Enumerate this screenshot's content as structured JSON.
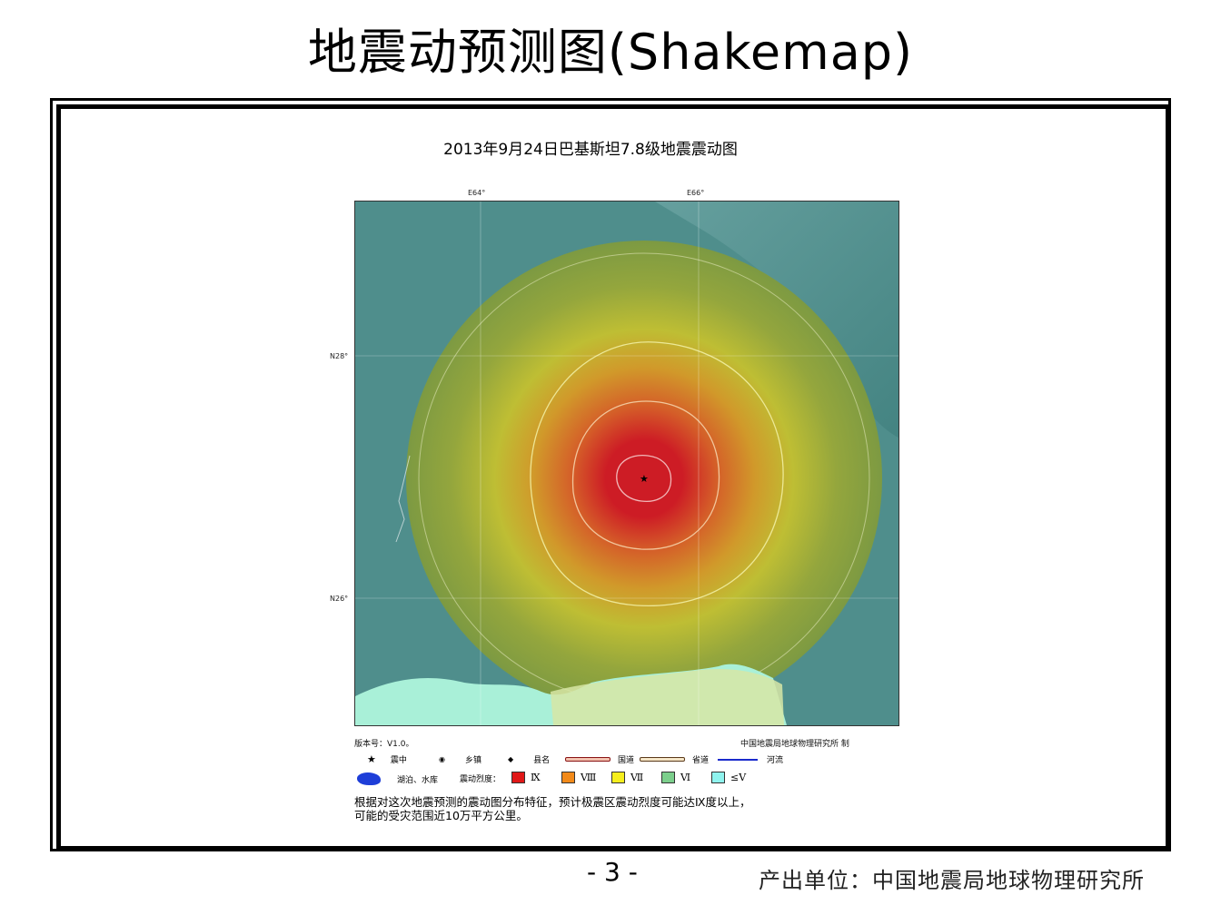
{
  "page_title": "地震动预测图(Shakemap)",
  "map_title": "2013年9月24日巴基斯坦7.8级地震震动图",
  "axes": {
    "lon_labels": [
      "E64°",
      "E66°"
    ],
    "lat_labels": [
      "N28°",
      "N26°"
    ]
  },
  "version": "版本号：V1.0。",
  "maker": "中国地震局地球物理研究所  制",
  "legend": {
    "epicenter": "震中",
    "town": "乡镇",
    "county": "县名",
    "national_road": "国道",
    "provincial_road": "省道",
    "river": "河流",
    "lake": "湖泊、水库",
    "intensity_label": "震动烈度：",
    "intensities": [
      {
        "label": "Ⅸ",
        "color": "#e01818"
      },
      {
        "label": "Ⅷ",
        "color": "#f28a1a"
      },
      {
        "label": "Ⅶ",
        "color": "#f5ee1e"
      },
      {
        "label": "Ⅵ",
        "color": "#7ccf8c"
      },
      {
        "label": "≤Ⅴ",
        "color": "#8ff3ee"
      }
    ]
  },
  "note_line1": "根据对这次地震预测的震动图分布特征，预计极震区震动烈度可能达Ⅸ度以上，",
  "note_line2": "可能的受灾范围近10万平方公里。",
  "page_number": "- 3 -",
  "producer": "产出单位：中国地震局地球物理研究所",
  "colors": {
    "terrain": "#4f8e8c",
    "sea": "#a9f0d8"
  }
}
